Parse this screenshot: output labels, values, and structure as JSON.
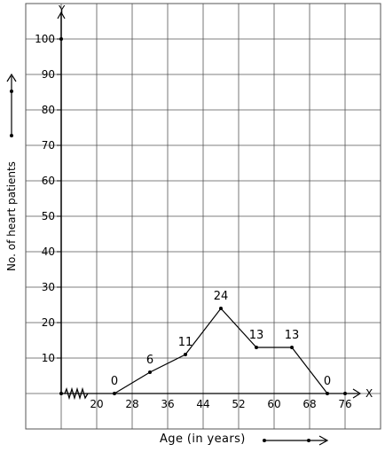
{
  "chart_data": {
    "type": "line",
    "title": "",
    "xlabel": "Age (in years)",
    "ylabel": "No. of heart patients",
    "x_axis_letter": "X",
    "y_axis_letter": "Y",
    "x_ticks": [
      20,
      28,
      36,
      44,
      52,
      60,
      68,
      76
    ],
    "y_ticks": [
      10,
      20,
      30,
      40,
      50,
      60,
      70,
      80,
      90,
      100
    ],
    "xlim": [
      12,
      76
    ],
    "ylim": [
      0,
      100
    ],
    "axis_break": true,
    "grid": true,
    "series": [
      {
        "x": [
          24,
          32,
          40,
          48,
          56,
          64,
          72
        ],
        "y": [
          0,
          6,
          11,
          24,
          13,
          13,
          0
        ],
        "labels": [
          "0",
          "6",
          "11",
          "24",
          "13",
          "13",
          "0"
        ]
      }
    ]
  }
}
